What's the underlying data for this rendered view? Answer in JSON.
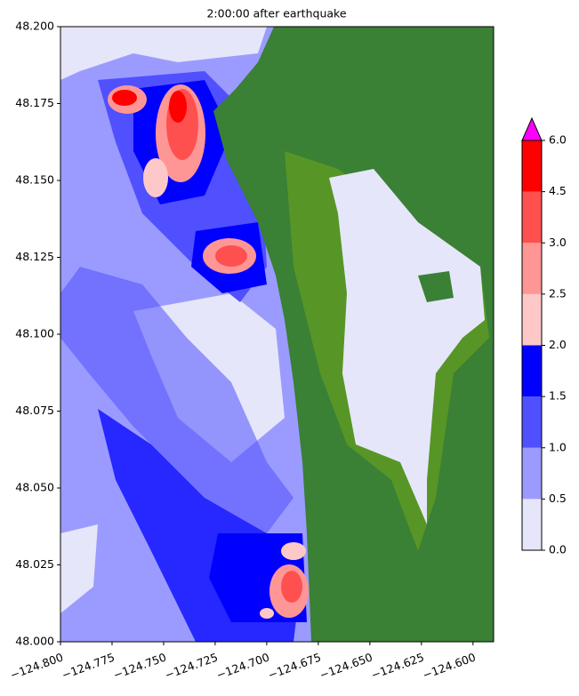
{
  "chart_data": {
    "type": "heatmap",
    "title": "2:00:00 after earthquake",
    "xlim": [
      -124.8,
      -124.59
    ],
    "xticks": [
      {
        "value": -124.8,
        "label": "−124.800"
      },
      {
        "value": -124.775,
        "label": "−124.775"
      },
      {
        "value": -124.75,
        "label": "−124.750"
      },
      {
        "value": -124.725,
        "label": "−124.725"
      },
      {
        "value": -124.7,
        "label": "−124.700"
      },
      {
        "value": -124.675,
        "label": "−124.675"
      },
      {
        "value": -124.65,
        "label": "−124.650"
      },
      {
        "value": -124.625,
        "label": "−124.625"
      },
      {
        "value": -124.6,
        "label": "−124.600"
      }
    ],
    "ylim": [
      48.0,
      48.2
    ],
    "yticks": [
      {
        "value": 48.0,
        "label": "48.000"
      },
      {
        "value": 48.025,
        "label": "48.025"
      },
      {
        "value": 48.05,
        "label": "48.050"
      },
      {
        "value": 48.075,
        "label": "48.075"
      },
      {
        "value": 48.1,
        "label": "48.100"
      },
      {
        "value": 48.125,
        "label": "48.125"
      },
      {
        "value": 48.15,
        "label": "48.150"
      },
      {
        "value": 48.175,
        "label": "48.175"
      },
      {
        "value": 48.2,
        "label": "48.200"
      }
    ],
    "colorbar": {
      "levels": [
        {
          "value": 0,
          "label": "0.0"
        },
        {
          "value": 0.5,
          "label": "0.5"
        },
        {
          "value": 1,
          "label": "1.0"
        },
        {
          "value": 1.5,
          "label": "1.5"
        },
        {
          "value": 2,
          "label": "2.0"
        },
        {
          "value": 2.5,
          "label": "2.5"
        },
        {
          "value": 3,
          "label": "3.0"
        },
        {
          "value": 4.5,
          "label": "4.5"
        },
        {
          "value": 6,
          "label": "6.0"
        }
      ],
      "colors": [
        "#e6e6fa",
        "#9b9bff",
        "#5050ff",
        "#0000ff",
        "#ffc8c8",
        "#ff9696",
        "#ff5050",
        "#ff0000"
      ],
      "extend_color": "#ff00ff"
    }
  }
}
